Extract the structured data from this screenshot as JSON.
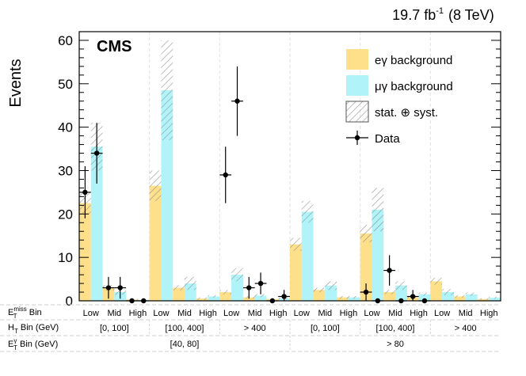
{
  "chart_data": {
    "type": "bar",
    "title": "CMS",
    "luminosity_label": "19.7 fb",
    "luminosity_sup": "-1",
    "energy_label": "(8 TeV)",
    "ylabel": "Events",
    "ylim": [
      0,
      62
    ],
    "yticks": [
      0,
      10,
      20,
      30,
      40,
      50,
      60
    ],
    "grid": false,
    "legend_position": "top-right",
    "legend": {
      "eg": "eγ background",
      "mg": "μγ background",
      "unc": "stat. ⊕ syst.",
      "data": "Data"
    },
    "colors": {
      "eg": "#ffe08a",
      "mg": "#b0f4fa",
      "data": "#000000",
      "unc": "#888888"
    },
    "met_row": {
      "label_main": "E",
      "label_sub": "T",
      "label_sup": "miss",
      "label_tail": " Bin",
      "bins": [
        "Low",
        "Mid",
        "High",
        "Low",
        "Mid",
        "High",
        "Low",
        "Mid",
        "High",
        "Low",
        "Mid",
        "High",
        "Low",
        "Mid",
        "High",
        "Low",
        "Mid",
        "High"
      ]
    },
    "ht_row": {
      "label_main": "H",
      "label_sub": "T",
      "label_tail": " Bin (GeV)",
      "groups": [
        "[0, 100]",
        "[100, 400]",
        "> 400",
        "[0, 100]",
        "[100, 400]",
        "> 400"
      ]
    },
    "etg_row": {
      "label_main": "E",
      "label_sub": "T",
      "label_sup": "γ",
      "label_tail": " Bin (GeV)",
      "groups": [
        "[40, 80]",
        "> 80"
      ]
    },
    "series": [
      {
        "name": "eγ background",
        "values": [
          22.5,
          3.0,
          0.3,
          26.5,
          3.0,
          0.5,
          2.0,
          0.8,
          0.4,
          13.0,
          2.5,
          0.8,
          15.5,
          2.0,
          0.8,
          4.5,
          1.0,
          0.4
        ],
        "errors": [
          2.5,
          0.6,
          0.2,
          3.5,
          0.6,
          0.3,
          0.5,
          0.3,
          0.2,
          1.5,
          0.5,
          0.3,
          2.0,
          0.5,
          0.3,
          0.8,
          0.3,
          0.2
        ]
      },
      {
        "name": "μγ background",
        "values": [
          35.5,
          2.0,
          0.2,
          48.5,
          4.0,
          1.0,
          6.0,
          1.2,
          0.5,
          20.5,
          3.5,
          0.8,
          21.0,
          3.5,
          1.5,
          2.0,
          1.5,
          0.7
        ],
        "errors": [
          5.5,
          0.6,
          0.2,
          11.5,
          1.5,
          0.3,
          1.5,
          0.4,
          0.2,
          2.5,
          1.0,
          0.3,
          5.0,
          1.0,
          0.4,
          0.7,
          0.4,
          0.2
        ]
      }
    ],
    "data_points": [
      {
        "y": 25,
        "err": 6
      },
      {
        "y": 3,
        "err": 2.5
      },
      {
        "y": 0,
        "err": 0
      },
      {
        "y": 34,
        "err": 7
      },
      {
        "y": 3,
        "err": 2.5
      },
      {
        "y": 0,
        "err": 0
      },
      {
        "y": 29,
        "err": 6.5
      },
      {
        "y": 3,
        "err": 2.5
      },
      {
        "y": 0,
        "err": 0
      },
      {
        "y": 46,
        "err": 8
      },
      {
        "y": 4,
        "err": 2.5
      },
      {
        "y": 1,
        "err": 1.5
      },
      {
        "y": 2,
        "err": 2
      },
      {
        "y": 7,
        "err": 3.5
      },
      {
        "y": 1,
        "err": 1.5
      },
      {
        "y": 0,
        "err": 0
      },
      {
        "y": 0,
        "err": 0
      },
      {
        "y": 0,
        "err": 0
      }
    ]
  }
}
